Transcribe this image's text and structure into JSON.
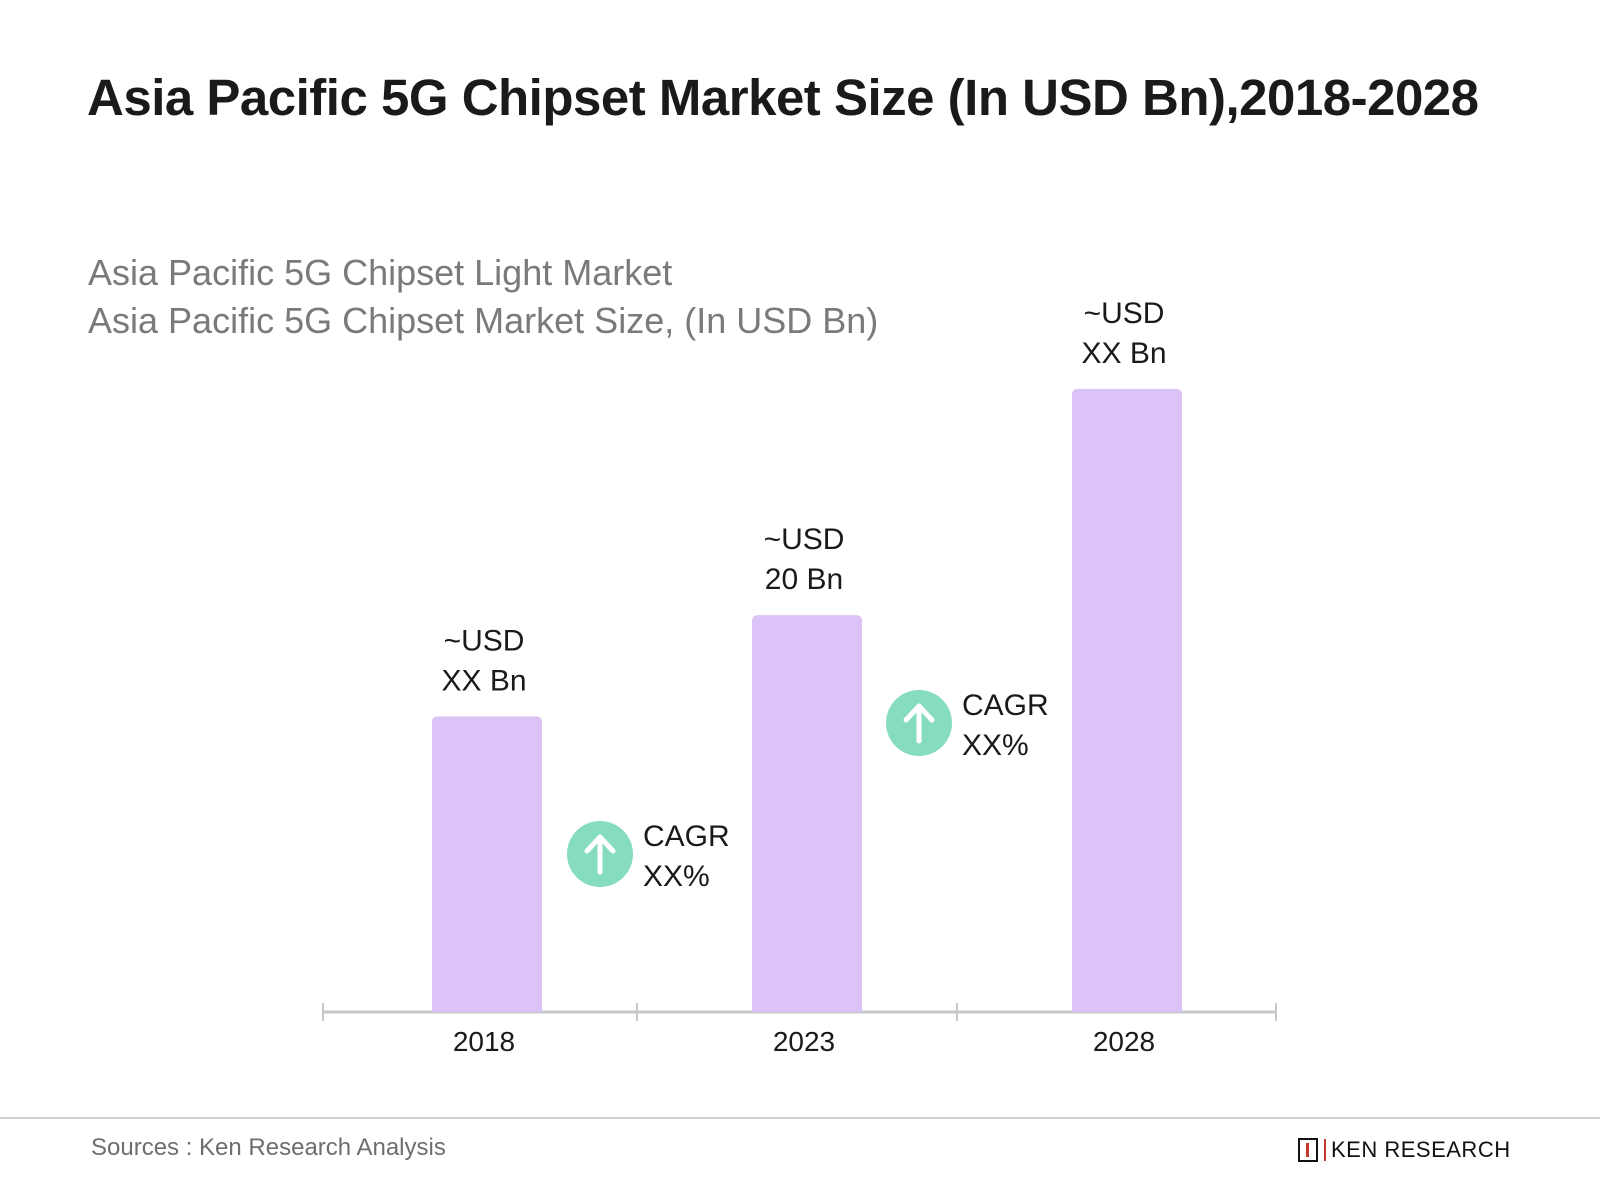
{
  "title": "Asia Pacific 5G Chipset Market Size (In USD Bn),2018-2028",
  "subtitle_lines": [
    "Asia Pacific 5G Chipset Light Market",
    "Asia Pacific 5G Chipset Market Size, (In USD Bn)"
  ],
  "chart_data": {
    "type": "bar",
    "categories": [
      "2018",
      "2023",
      "2028"
    ],
    "values": [
      14.9,
      20,
      31.4
    ],
    "data_labels": [
      [
        "~USD",
        "XX Bn"
      ],
      [
        "~USD",
        "20 Bn"
      ],
      [
        "~USD",
        "XX Bn"
      ]
    ],
    "annotations": [
      {
        "between": [
          "2018",
          "2023"
        ],
        "lines": [
          "CAGR",
          "XX%"
        ],
        "icon": "arrow-up-circle-icon"
      },
      {
        "between": [
          "2023",
          "2028"
        ],
        "lines": [
          "CAGR",
          "XX%"
        ],
        "icon": "arrow-up-circle-icon"
      }
    ],
    "ylim": [
      0,
      31.4
    ],
    "grid": false,
    "colors": {
      "bar": "#dcc3f7",
      "cagr_icon": "#86dcc0",
      "axis": "#c8c8c8"
    }
  },
  "footer": {
    "sources": "Sources : Ken Research Analysis",
    "logo_text": "KEN RESEARCH"
  }
}
